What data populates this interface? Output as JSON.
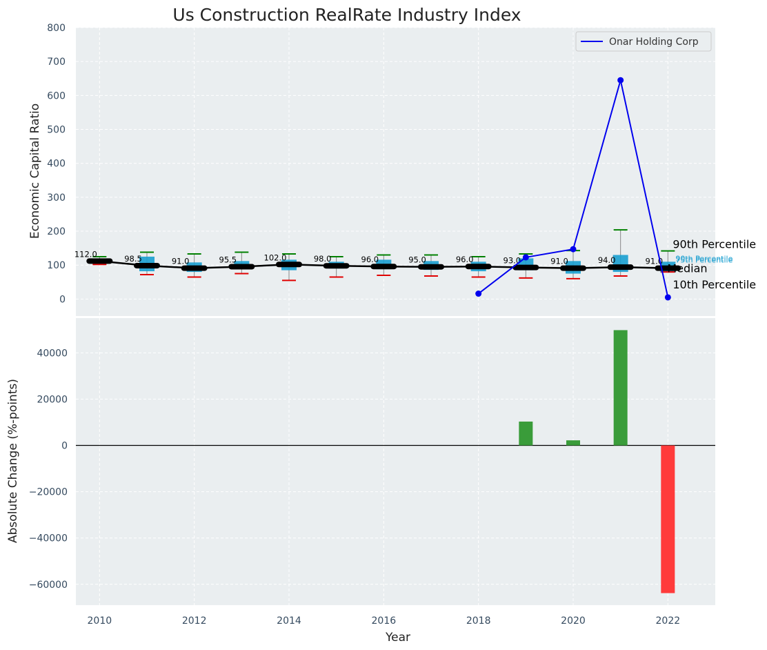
{
  "chart_data": [
    {
      "type": "box+line",
      "title": "Us Construction RealRate Industry Index",
      "ylabel": "Economic Capital Ratio",
      "ylim": [
        -50,
        800
      ],
      "yticks": [
        0,
        100,
        200,
        300,
        400,
        500,
        600,
        700,
        800
      ],
      "xlim": [
        2009.5,
        2023
      ],
      "grid": true,
      "legend": {
        "position": "top-right",
        "entries": [
          "Onar Holding Corp"
        ]
      },
      "years": [
        2010,
        2011,
        2012,
        2013,
        2014,
        2015,
        2016,
        2017,
        2018,
        2019,
        2020,
        2021,
        2022
      ],
      "median": [
        112.0,
        98.5,
        91.0,
        95.5,
        102.0,
        98.0,
        96.0,
        95.0,
        96.0,
        93.0,
        91.0,
        94.0,
        91.0
      ],
      "median_labels": [
        "112.0",
        "98.5",
        "91.0",
        "95.5",
        "102.0",
        "98.0",
        "96.0",
        "95.0",
        "96.0",
        "93.0",
        "91.0",
        "94.0",
        "91.0"
      ],
      "q1": [
        108,
        82,
        80,
        88,
        85,
        90,
        88,
        86,
        82,
        85,
        75,
        80,
        78
      ],
      "q3": [
        118,
        125,
        108,
        112,
        116,
        110,
        116,
        112,
        110,
        120,
        112,
        130,
        110
      ],
      "p90": [
        125,
        138,
        133,
        138,
        133,
        125,
        130,
        130,
        125,
        133,
        143,
        204,
        142
      ],
      "p10": [
        102,
        72,
        65,
        75,
        55,
        65,
        70,
        68,
        65,
        62,
        60,
        68,
        80
      ],
      "company": {
        "name": "Onar Holding Corp",
        "color": "#0000ee",
        "years": [
          2018,
          2019,
          2020,
          2021,
          2022
        ],
        "values": [
          16,
          123,
          147,
          645,
          5
        ]
      },
      "annotations": {
        "p90_label": "90th Percentile",
        "median_label": "Median",
        "p10_label": "10th Percentile",
        "small_label_1": "90th Percentile",
        "small_label_2": "75th Percentile"
      }
    },
    {
      "type": "bar",
      "xlabel": "Year",
      "ylabel": "Absolute Change (%-points)",
      "ylim": [
        -69000,
        55000
      ],
      "yticks": [
        -60000,
        -40000,
        -20000,
        0,
        20000,
        40000
      ],
      "ytick_labels": [
        "−60000",
        "−40000",
        "−20000",
        "0",
        "20000",
        "40000"
      ],
      "xticks": [
        2010,
        2012,
        2014,
        2016,
        2018,
        2020,
        2022
      ],
      "categories": [
        2019,
        2020,
        2021,
        2022
      ],
      "values": [
        10300,
        2200,
        49800,
        -63800
      ],
      "positive_color": "#3a9c3a",
      "negative_color": "#ff3b3b"
    }
  ]
}
